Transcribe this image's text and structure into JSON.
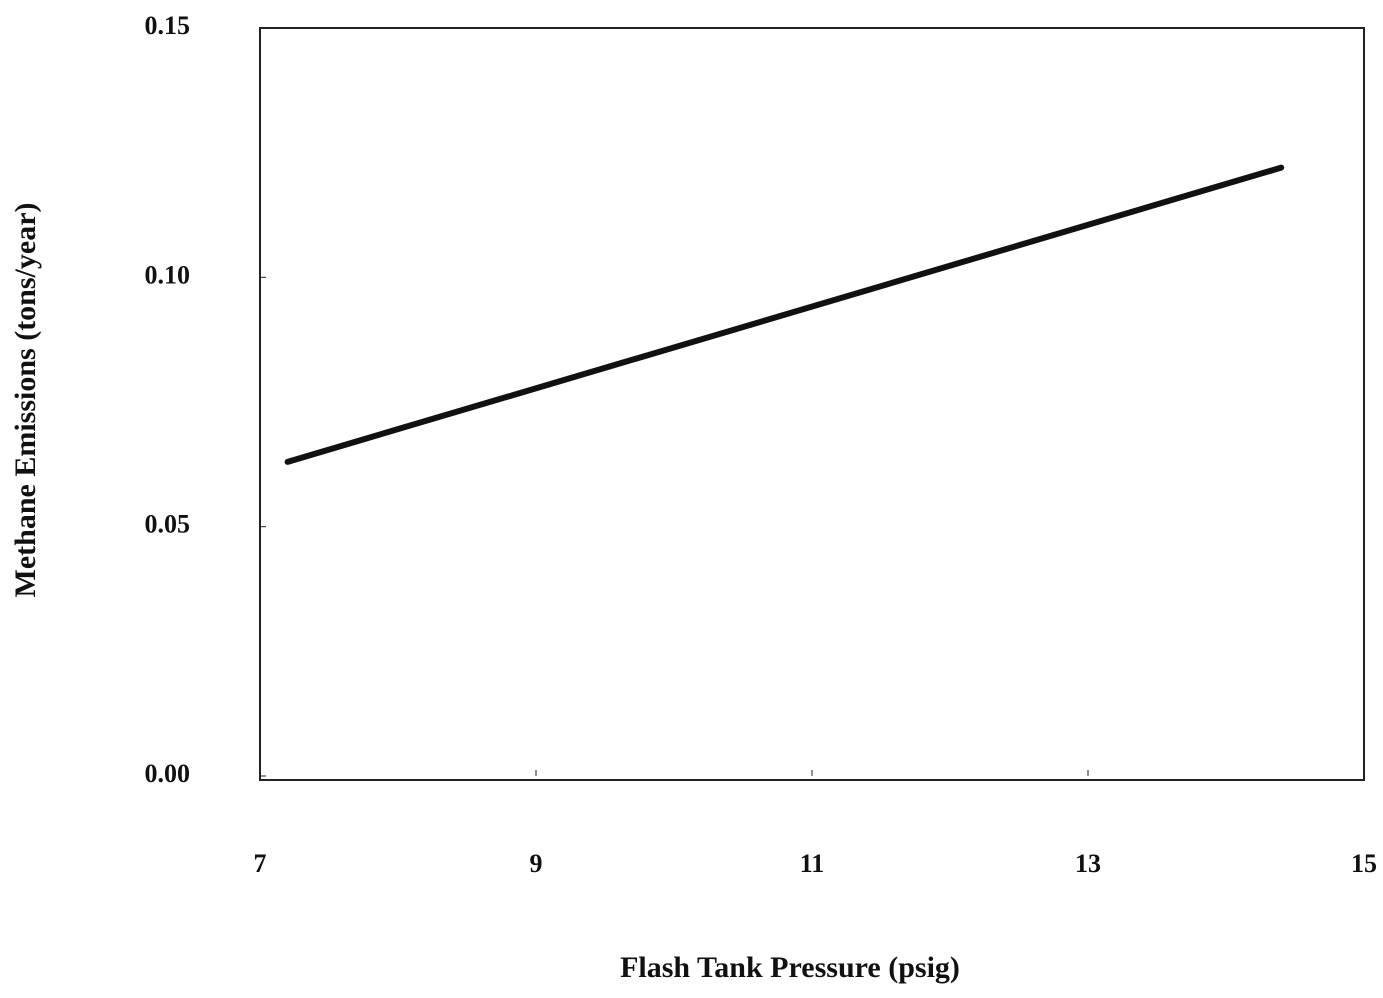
{
  "chart_data": {
    "type": "line",
    "xlabel": "Flash Tank Pressure (psig)",
    "ylabel": "Methane Emissions (tons/year)",
    "x": [
      7.2,
      14.4
    ],
    "series": [
      {
        "name": "Methane Emissions",
        "color": "#111111",
        "values": [
          0.063,
          0.122
        ]
      }
    ],
    "xlim": [
      7,
      15
    ],
    "xticks": [
      7,
      9,
      11,
      13,
      15
    ],
    "ylim": [
      0,
      0.15
    ],
    "yticks": [
      {
        "value": 0,
        "label": "0.00"
      },
      0.05,
      {
        "value": 0.1,
        "label": "0.10"
      },
      0.15
    ],
    "grid": false
  }
}
